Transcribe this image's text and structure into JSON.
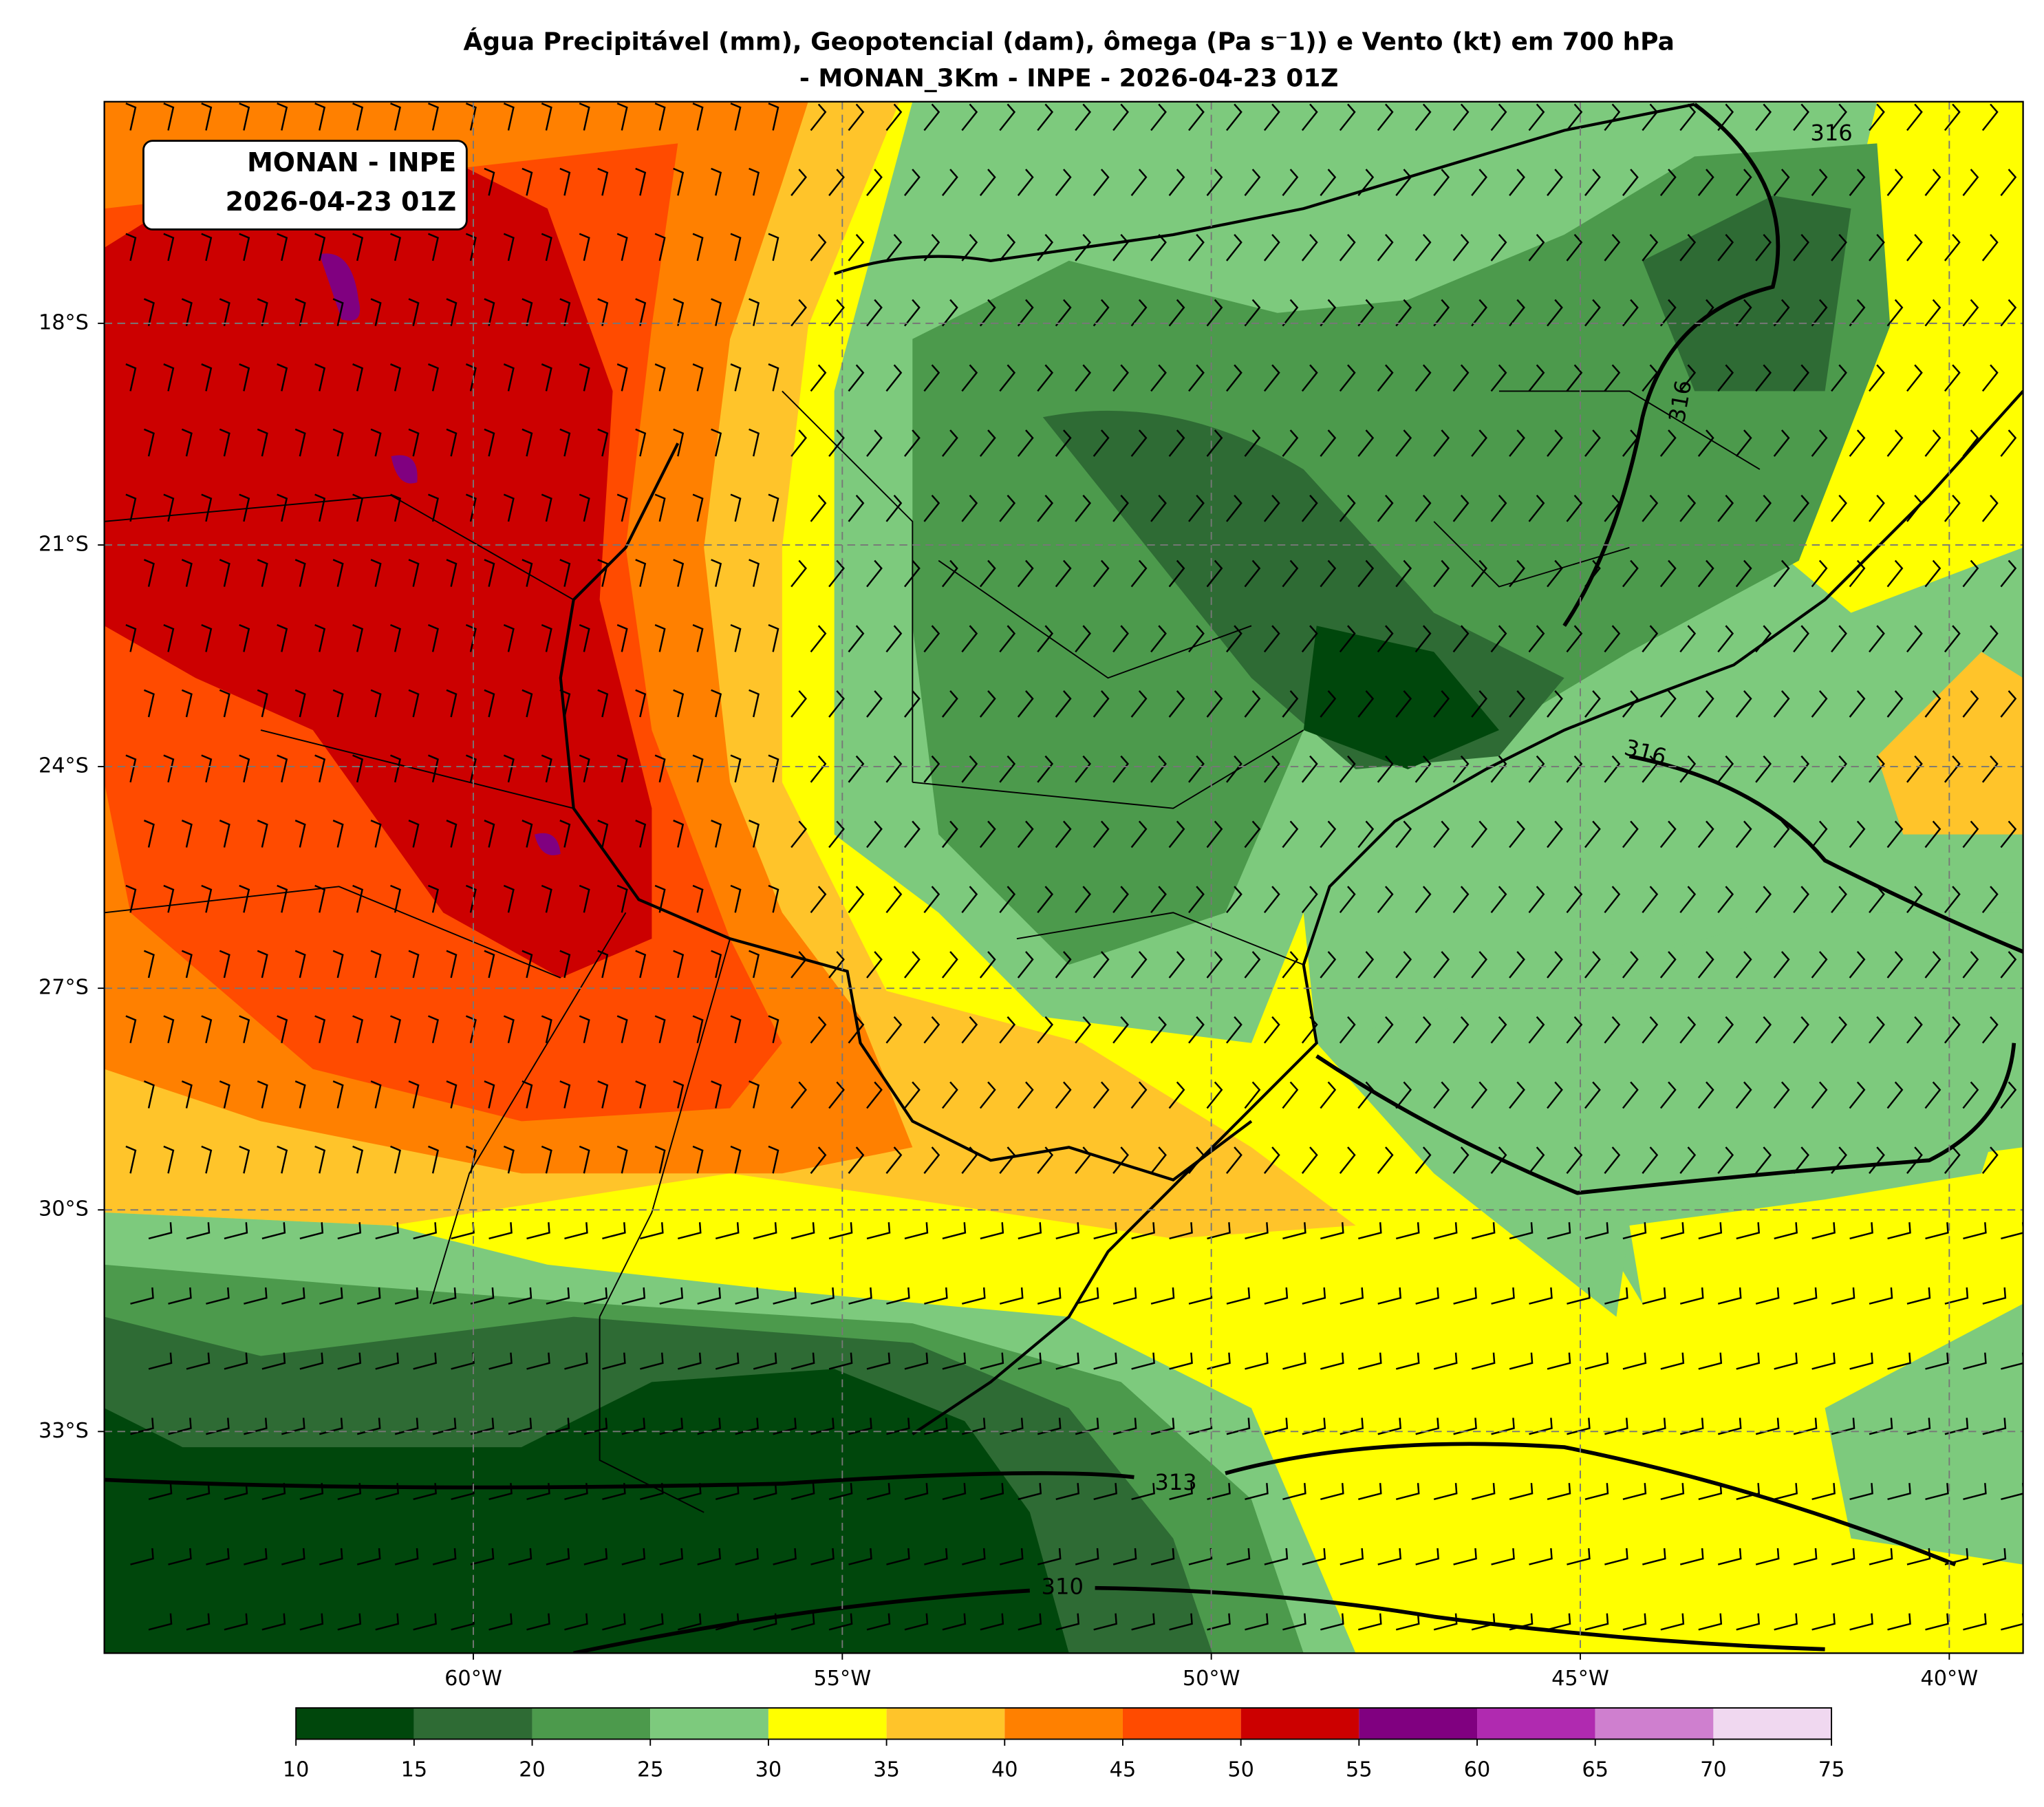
{
  "title": [
    "Água Precipitável (mm), Geopotencial (dam), ômega (Pa s⁻1)) e Vento (kt) em 700 hPa",
    "- MONAN_3Km - INPE - 2026-04-23 01Z"
  ],
  "annotation": [
    "MONAN - INPE",
    "2026-04-23 01Z"
  ],
  "lon_range": [
    -65,
    -39
  ],
  "lat_range": [
    -36,
    -15
  ],
  "lat_ticks": [
    {
      "value": -18,
      "label": "18°S"
    },
    {
      "value": -21,
      "label": "21°S"
    },
    {
      "value": -24,
      "label": "24°S"
    },
    {
      "value": -27,
      "label": "27°S"
    },
    {
      "value": -30,
      "label": "30°S"
    },
    {
      "value": -33,
      "label": "33°S"
    }
  ],
  "lon_ticks": [
    {
      "value": -60,
      "label": "60°W"
    },
    {
      "value": -55,
      "label": "55°W"
    },
    {
      "value": -50,
      "label": "50°W"
    },
    {
      "value": -45,
      "label": "45°W"
    },
    {
      "value": -40,
      "label": "40°W"
    }
  ],
  "grid": true,
  "colorbar": {
    "ticks": [
      10,
      15,
      20,
      25,
      30,
      35,
      40,
      45,
      50,
      55,
      60,
      65,
      70,
      75
    ],
    "colors": [
      "#00470c",
      "#2e6b34",
      "#4c9a4c",
      "#7dca7d",
      "#ffff00",
      "#ffc42a",
      "#ff8000",
      "#ff4b00",
      "#cc0000",
      "#800080",
      "#b02ab0",
      "#cf7fcf",
      "#f0d8f0"
    ]
  },
  "contour_labels": [
    316,
    316,
    316,
    313,
    310
  ]
}
